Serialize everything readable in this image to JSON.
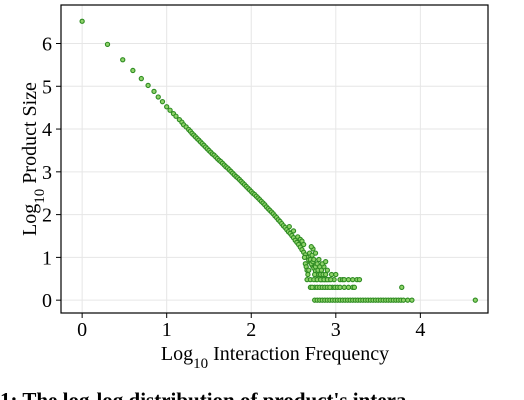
{
  "chart_data": {
    "type": "scatter",
    "xlabel": {
      "prefix": "Log",
      "sub": "10",
      "suffix": " Interaction Frequency"
    },
    "ylabel": {
      "prefix": "Log",
      "sub": "10",
      "suffix": " Product Size"
    },
    "xlim": [
      -0.25,
      4.8
    ],
    "ylim": [
      -0.3,
      6.9
    ],
    "xticks": [
      0,
      1,
      2,
      3,
      4
    ],
    "yticks": [
      0,
      1,
      2,
      3,
      4,
      5,
      6
    ],
    "grid": true,
    "marker_color": "#2e8b22",
    "marker_face": "#8fd36a",
    "series": [
      {
        "points": [
          [
            0.0,
            6.52
          ],
          [
            0.3,
            5.98
          ],
          [
            0.48,
            5.62
          ],
          [
            0.6,
            5.37
          ],
          [
            0.7,
            5.18
          ],
          [
            0.78,
            5.02
          ],
          [
            0.85,
            4.88
          ],
          [
            0.9,
            4.75
          ],
          [
            0.95,
            4.64
          ],
          [
            1.0,
            4.52
          ],
          [
            1.04,
            4.44
          ],
          [
            1.08,
            4.36
          ],
          [
            1.11,
            4.3
          ],
          [
            1.15,
            4.22
          ],
          [
            1.18,
            4.16
          ],
          [
            1.2,
            4.1
          ],
          [
            1.23,
            4.05
          ],
          [
            1.26,
            3.99
          ],
          [
            1.28,
            3.95
          ],
          [
            1.3,
            3.9
          ],
          [
            1.32,
            3.86
          ],
          [
            1.34,
            3.82
          ],
          [
            1.36,
            3.78
          ],
          [
            1.38,
            3.74
          ],
          [
            1.4,
            3.7
          ],
          [
            1.42,
            3.66
          ],
          [
            1.44,
            3.62
          ],
          [
            1.46,
            3.58
          ],
          [
            1.48,
            3.54
          ],
          [
            1.5,
            3.5
          ],
          [
            1.52,
            3.46
          ],
          [
            1.54,
            3.42
          ],
          [
            1.56,
            3.39
          ],
          [
            1.58,
            3.35
          ],
          [
            1.6,
            3.31
          ],
          [
            1.62,
            3.27
          ],
          [
            1.64,
            3.24
          ],
          [
            1.66,
            3.2
          ],
          [
            1.68,
            3.16
          ],
          [
            1.7,
            3.12
          ],
          [
            1.72,
            3.09
          ],
          [
            1.74,
            3.05
          ],
          [
            1.76,
            3.01
          ],
          [
            1.78,
            2.97
          ],
          [
            1.8,
            2.93
          ],
          [
            1.82,
            2.89
          ],
          [
            1.84,
            2.86
          ],
          [
            1.86,
            2.82
          ],
          [
            1.88,
            2.78
          ],
          [
            1.9,
            2.74
          ],
          [
            1.92,
            2.7
          ],
          [
            1.94,
            2.66
          ],
          [
            1.96,
            2.62
          ],
          [
            1.98,
            2.58
          ],
          [
            2.0,
            2.54
          ],
          [
            2.02,
            2.5
          ],
          [
            2.04,
            2.47
          ],
          [
            2.06,
            2.43
          ],
          [
            2.08,
            2.39
          ],
          [
            2.1,
            2.35
          ],
          [
            2.12,
            2.31
          ],
          [
            2.14,
            2.27
          ],
          [
            2.16,
            2.23
          ],
          [
            2.18,
            2.18
          ],
          [
            2.2,
            2.14
          ],
          [
            2.22,
            2.1
          ],
          [
            2.24,
            2.06
          ],
          [
            2.26,
            2.02
          ],
          [
            2.28,
            1.97
          ],
          [
            2.3,
            1.93
          ],
          [
            2.32,
            1.88
          ],
          [
            2.34,
            1.84
          ],
          [
            2.36,
            1.79
          ],
          [
            2.38,
            1.74
          ],
          [
            2.4,
            1.7
          ],
          [
            2.42,
            1.65
          ],
          [
            2.44,
            1.6
          ],
          [
            2.46,
            1.56
          ],
          [
            2.48,
            1.51
          ],
          [
            2.5,
            1.46
          ],
          [
            2.52,
            1.4
          ],
          [
            2.54,
            1.35
          ],
          [
            2.56,
            1.3
          ],
          [
            2.58,
            1.24
          ],
          [
            2.6,
            1.18
          ],
          [
            2.62,
            1.12
          ],
          [
            2.64,
            1.06
          ],
          [
            2.66,
            1.0
          ],
          [
            2.68,
            0.94
          ],
          [
            2.7,
            0.88
          ],
          [
            2.72,
            0.81
          ],
          [
            2.74,
            0.75
          ],
          [
            2.76,
            0.68
          ],
          [
            2.78,
            0.62
          ],
          [
            2.8,
            0.55
          ],
          [
            2.82,
            0.48
          ],
          [
            2.45,
            1.72
          ],
          [
            2.5,
            1.62
          ],
          [
            2.55,
            1.48
          ],
          [
            2.58,
            1.42
          ],
          [
            2.6,
            1.38
          ],
          [
            2.62,
            1.3
          ],
          [
            2.63,
            1.0
          ],
          [
            2.64,
            0.85
          ],
          [
            2.65,
            0.78
          ],
          [
            2.66,
            0.7
          ],
          [
            2.67,
            0.6
          ],
          [
            2.68,
            0.7
          ],
          [
            2.69,
            1.1
          ],
          [
            2.7,
            0.95
          ],
          [
            2.71,
            0.85
          ],
          [
            2.72,
            1.05
          ],
          [
            2.73,
            0.9
          ],
          [
            2.74,
            0.95
          ],
          [
            2.75,
            0.6
          ],
          [
            2.76,
            0.78
          ],
          [
            2.77,
            0.48
          ],
          [
            2.78,
            0.85
          ],
          [
            2.79,
            0.7
          ],
          [
            2.8,
            0.6
          ],
          [
            2.81,
            0.78
          ],
          [
            2.82,
            0.6
          ],
          [
            2.83,
            0.7
          ],
          [
            2.84,
            0.48
          ],
          [
            2.85,
            0.6
          ],
          [
            2.86,
            0.78
          ],
          [
            2.87,
            0.48
          ],
          [
            2.88,
            0.6
          ],
          [
            2.89,
            0.48
          ],
          [
            2.9,
            0.7
          ],
          [
            2.92,
            0.48
          ],
          [
            2.95,
            0.6
          ],
          [
            2.98,
            0.48
          ],
          [
            3.0,
            0.6
          ],
          [
            3.05,
            0.48
          ],
          [
            3.08,
            0.48
          ],
          [
            2.96,
            0.3
          ],
          [
            2.99,
            0.3
          ],
          [
            3.02,
            0.3
          ],
          [
            3.05,
            0.3
          ],
          [
            3.1,
            0.3
          ],
          [
            3.15,
            0.3
          ],
          [
            3.2,
            0.3
          ],
          [
            3.22,
            0.3
          ],
          [
            2.75,
            0.3
          ],
          [
            2.78,
            0.3
          ],
          [
            2.81,
            0.3
          ],
          [
            2.84,
            0.3
          ],
          [
            2.87,
            0.3
          ],
          [
            2.9,
            0.3
          ],
          [
            2.93,
            0.3
          ],
          [
            2.7,
            0.3
          ],
          [
            2.72,
            0.3
          ],
          [
            2.66,
            0.48
          ],
          [
            2.7,
            0.48
          ],
          [
            2.74,
            0.48
          ],
          [
            2.78,
            0.48
          ],
          [
            2.82,
            0.48
          ],
          [
            2.86,
            0.48
          ],
          [
            2.9,
            0.48
          ],
          [
            2.94,
            0.48
          ],
          [
            3.1,
            0.48
          ],
          [
            3.15,
            0.48
          ],
          [
            3.2,
            0.48
          ],
          [
            3.25,
            0.48
          ],
          [
            3.28,
            0.48
          ],
          [
            3.78,
            0.3
          ],
          [
            3.85,
            0.0
          ],
          [
            3.9,
            0.0
          ],
          [
            4.65,
            0.0
          ],
          [
            2.75,
            0.0
          ],
          [
            2.78,
            0.0
          ],
          [
            2.81,
            0.0
          ],
          [
            2.84,
            0.0
          ],
          [
            2.87,
            0.0
          ],
          [
            2.9,
            0.0
          ],
          [
            2.93,
            0.0
          ],
          [
            2.96,
            0.0
          ],
          [
            2.99,
            0.0
          ],
          [
            3.02,
            0.0
          ],
          [
            3.05,
            0.0
          ],
          [
            3.08,
            0.0
          ],
          [
            3.11,
            0.0
          ],
          [
            3.14,
            0.0
          ],
          [
            3.17,
            0.0
          ],
          [
            3.2,
            0.0
          ],
          [
            3.23,
            0.0
          ],
          [
            3.26,
            0.0
          ],
          [
            3.29,
            0.0
          ],
          [
            3.32,
            0.0
          ],
          [
            3.35,
            0.0
          ],
          [
            3.38,
            0.0
          ],
          [
            3.41,
            0.0
          ],
          [
            3.44,
            0.0
          ],
          [
            3.47,
            0.0
          ],
          [
            3.5,
            0.0
          ],
          [
            3.53,
            0.0
          ],
          [
            3.56,
            0.0
          ],
          [
            3.59,
            0.0
          ],
          [
            3.62,
            0.0
          ],
          [
            3.65,
            0.0
          ],
          [
            3.68,
            0.0
          ],
          [
            3.71,
            0.0
          ],
          [
            3.74,
            0.0
          ],
          [
            3.77,
            0.0
          ],
          [
            3.8,
            0.0
          ],
          [
            2.73,
            1.2
          ],
          [
            2.76,
            1.1
          ],
          [
            2.8,
            0.95
          ],
          [
            2.84,
            0.85
          ],
          [
            2.88,
            0.9
          ],
          [
            2.71,
            1.25
          ]
        ]
      }
    ]
  },
  "caption": "1: The log-log distribution of product's intera"
}
